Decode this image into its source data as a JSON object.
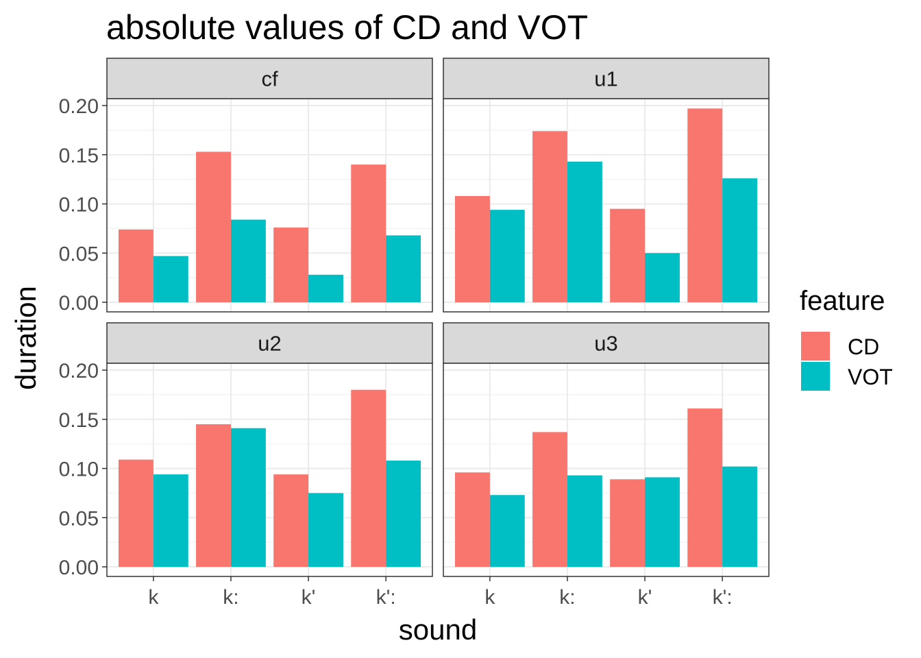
{
  "chart_data": {
    "type": "bar",
    "title": "absolute values of CD and VOT",
    "xlabel": "sound",
    "ylabel": "duration",
    "categories": [
      "k",
      "k:",
      "k'",
      "k':"
    ],
    "ylim": [
      0,
      0.2
    ],
    "yticks": [
      "0.00",
      "0.05",
      "0.10",
      "0.15",
      "0.20"
    ],
    "grid": true,
    "legend": {
      "title": "feature",
      "position": "right",
      "items": [
        {
          "name": "CD",
          "color": "#F8766D"
        },
        {
          "name": "VOT",
          "color": "#00BFC4"
        }
      ]
    },
    "panels": [
      {
        "label": "cf",
        "series": [
          {
            "name": "CD",
            "values": [
              0.074,
              0.153,
              0.076,
              0.14
            ]
          },
          {
            "name": "VOT",
            "values": [
              0.047,
              0.084,
              0.028,
              0.068
            ]
          }
        ]
      },
      {
        "label": "u1",
        "series": [
          {
            "name": "CD",
            "values": [
              0.108,
              0.174,
              0.095,
              0.197
            ]
          },
          {
            "name": "VOT",
            "values": [
              0.094,
              0.143,
              0.05,
              0.126
            ]
          }
        ]
      },
      {
        "label": "u2",
        "series": [
          {
            "name": "CD",
            "values": [
              0.109,
              0.145,
              0.094,
              0.18
            ]
          },
          {
            "name": "VOT",
            "values": [
              0.094,
              0.141,
              0.075,
              0.108
            ]
          }
        ]
      },
      {
        "label": "u3",
        "series": [
          {
            "name": "CD",
            "values": [
              0.096,
              0.137,
              0.089,
              0.161
            ]
          },
          {
            "name": "VOT",
            "values": [
              0.073,
              0.093,
              0.091,
              0.102
            ]
          }
        ]
      }
    ]
  }
}
